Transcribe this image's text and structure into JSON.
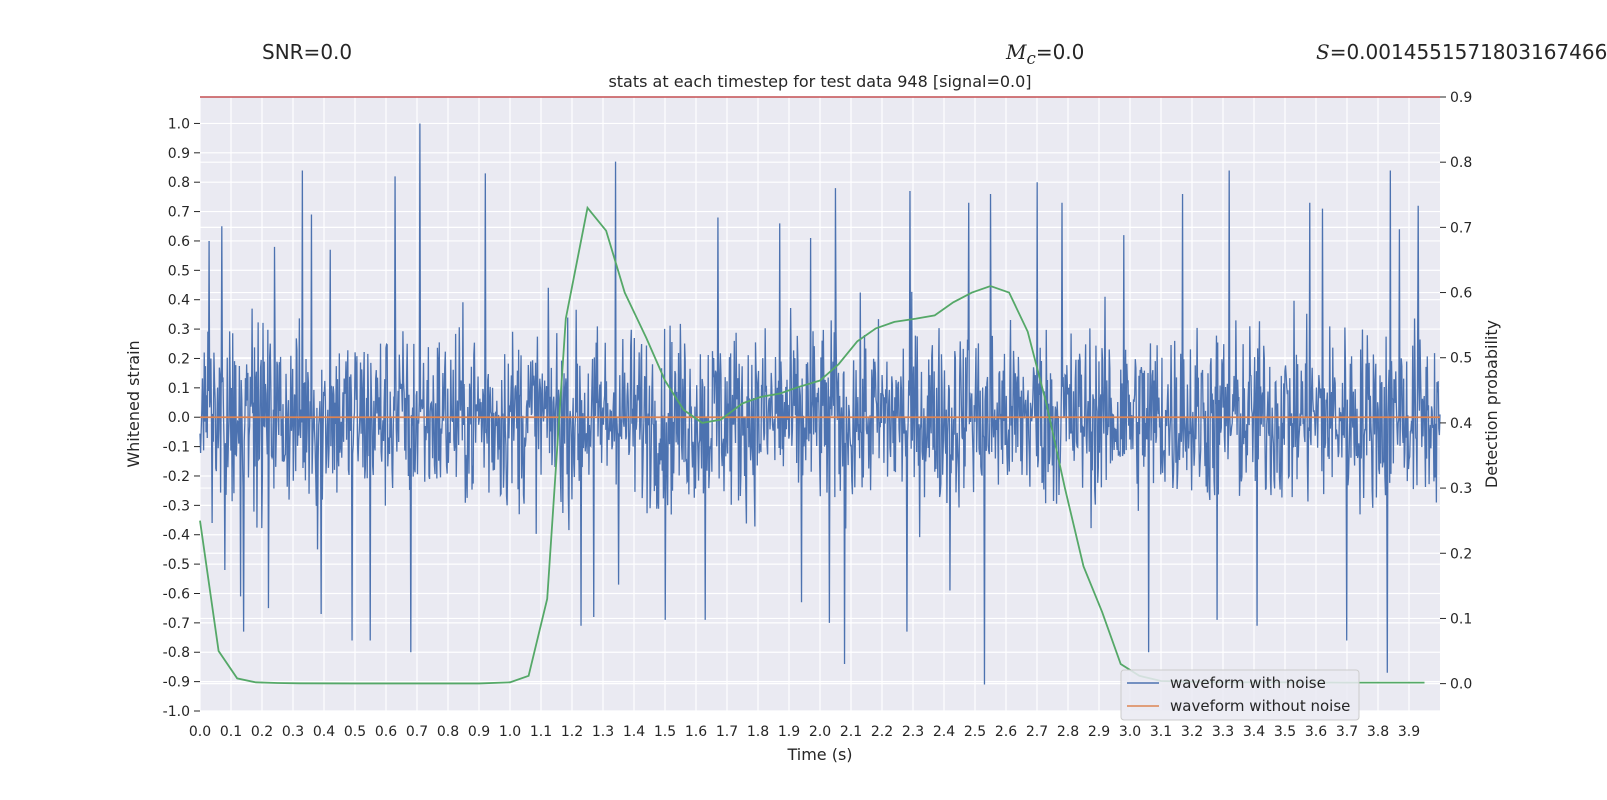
{
  "header": {
    "snr_label": "SNR=",
    "snr_value": "0.0",
    "mc_symbol": "M",
    "mc_sub": "c",
    "mc_value": "=0.0",
    "s_symbol": "S",
    "s_value": "=0.0014551571803167466"
  },
  "chart_data": {
    "type": "line",
    "title": "stats at each timestep for test data 948 [signal=0.0]",
    "xlabel": "Time (s)",
    "ylabel": "Whitened strain",
    "y2label": "Detection probability",
    "xlim": [
      0.0,
      4.0
    ],
    "ylim": [
      -1.0,
      1.09
    ],
    "y2lim": [
      -0.042,
      0.9
    ],
    "x_ticks": [
      "0.0",
      "0.1",
      "0.2",
      "0.3",
      "0.4",
      "0.5",
      "0.6",
      "0.7",
      "0.8",
      "0.9",
      "1.0",
      "1.1",
      "1.2",
      "1.3",
      "1.4",
      "1.5",
      "1.6",
      "1.7",
      "1.8",
      "1.9",
      "2.0",
      "2.1",
      "2.2",
      "2.3",
      "2.4",
      "2.5",
      "2.6",
      "2.7",
      "2.8",
      "2.9",
      "3.0",
      "3.1",
      "3.2",
      "3.3",
      "3.4",
      "3.5",
      "3.6",
      "3.7",
      "3.8",
      "3.9"
    ],
    "y_ticks": [
      "1.0",
      "0.9",
      "0.8",
      "0.7",
      "0.6",
      "0.5",
      "0.4",
      "0.3",
      "0.2",
      "0.1",
      "0.0",
      "-0.1",
      "-0.2",
      "-0.3",
      "-0.4",
      "-0.5",
      "-0.6",
      "-0.7",
      "-0.8",
      "-0.9",
      "-1.0"
    ],
    "y2_ticks": [
      "0.9",
      "0.8",
      "0.7",
      "0.6",
      "0.5",
      "0.4",
      "0.3",
      "0.2",
      "0.1",
      "0.0"
    ],
    "grid": true,
    "legend_position": "lower-right",
    "threshold": {
      "value": 0.9,
      "axis": "y2",
      "color": "#c44e52"
    },
    "series": [
      {
        "name": "waveform with noise",
        "color": "#4c72b0",
        "axis": "y",
        "x_range": [
          0.0,
          4.0
        ],
        "envelope": "noise, approx. amplitude 0.3-0.4 with peaks near 1.0 (t=0.7) and -0.91 (t=2.53)",
        "peaks": [
          [
            0.03,
            0.6
          ],
          [
            0.04,
            -0.36
          ],
          [
            0.07,
            0.65
          ],
          [
            0.08,
            -0.52
          ],
          [
            0.13,
            -0.61
          ],
          [
            0.14,
            -0.73
          ],
          [
            0.22,
            -0.65
          ],
          [
            0.24,
            0.58
          ],
          [
            0.33,
            0.84
          ],
          [
            0.36,
            0.69
          ],
          [
            0.38,
            -0.45
          ],
          [
            0.39,
            -0.67
          ],
          [
            0.42,
            0.57
          ],
          [
            0.49,
            -0.76
          ],
          [
            0.55,
            -0.76
          ],
          [
            0.63,
            0.82
          ],
          [
            0.68,
            -0.8
          ],
          [
            0.71,
            1.0
          ],
          [
            0.92,
            0.83
          ],
          [
            1.23,
            -0.71
          ],
          [
            1.27,
            -0.68
          ],
          [
            1.34,
            0.87
          ],
          [
            1.35,
            -0.57
          ],
          [
            1.5,
            -0.69
          ],
          [
            1.63,
            -0.69
          ],
          [
            1.67,
            0.68
          ],
          [
            1.87,
            0.66
          ],
          [
            1.94,
            -0.63
          ],
          [
            1.97,
            0.61
          ],
          [
            2.03,
            -0.7
          ],
          [
            2.05,
            0.78
          ],
          [
            2.08,
            -0.84
          ],
          [
            2.28,
            -0.73
          ],
          [
            2.29,
            0.77
          ],
          [
            2.42,
            -0.59
          ],
          [
            2.48,
            0.73
          ],
          [
            2.53,
            -0.91
          ],
          [
            2.55,
            0.76
          ],
          [
            2.7,
            0.8
          ],
          [
            2.78,
            0.73
          ],
          [
            2.98,
            0.62
          ],
          [
            3.06,
            -0.8
          ],
          [
            3.17,
            0.76
          ],
          [
            3.28,
            -0.69
          ],
          [
            3.32,
            0.84
          ],
          [
            3.41,
            -0.71
          ],
          [
            3.58,
            0.73
          ],
          [
            3.62,
            0.71
          ],
          [
            3.7,
            -0.76
          ],
          [
            3.83,
            -0.87
          ],
          [
            3.84,
            0.84
          ],
          [
            3.87,
            0.64
          ],
          [
            3.93,
            0.72
          ]
        ]
      },
      {
        "name": "waveform without noise",
        "color": "#dd8452",
        "axis": "y",
        "x": [
          0.0,
          4.0
        ],
        "values": [
          0.0,
          0.0
        ]
      },
      {
        "name": "",
        "color": "#55a868",
        "axis": "y2",
        "x": [
          0.0,
          0.06,
          0.12,
          0.18,
          0.25,
          0.32,
          0.5,
          0.7,
          0.9,
          1.0,
          1.06,
          1.12,
          1.18,
          1.25,
          1.31,
          1.37,
          1.44,
          1.5,
          1.56,
          1.62,
          1.68,
          1.75,
          1.81,
          1.87,
          1.93,
          2.0,
          2.06,
          2.12,
          2.18,
          2.24,
          2.31,
          2.37,
          2.43,
          2.49,
          2.55,
          2.61,
          2.67,
          2.73,
          2.79,
          2.85,
          2.91,
          2.97,
          3.03,
          3.1,
          3.3,
          3.5,
          3.7,
          3.9,
          3.95
        ],
        "values": [
          0.25,
          0.05,
          0.008,
          0.002,
          0.001,
          0.0005,
          0.0003,
          0.0003,
          0.0003,
          0.002,
          0.012,
          0.13,
          0.56,
          0.73,
          0.695,
          0.6,
          0.53,
          0.465,
          0.42,
          0.4,
          0.405,
          0.43,
          0.44,
          0.445,
          0.455,
          0.465,
          0.49,
          0.525,
          0.545,
          0.555,
          0.56,
          0.565,
          0.585,
          0.6,
          0.61,
          0.6,
          0.54,
          0.43,
          0.3,
          0.18,
          0.11,
          0.03,
          0.012,
          0.004,
          0.002,
          0.002,
          0.0015,
          0.0015,
          0.0015
        ]
      }
    ]
  }
}
